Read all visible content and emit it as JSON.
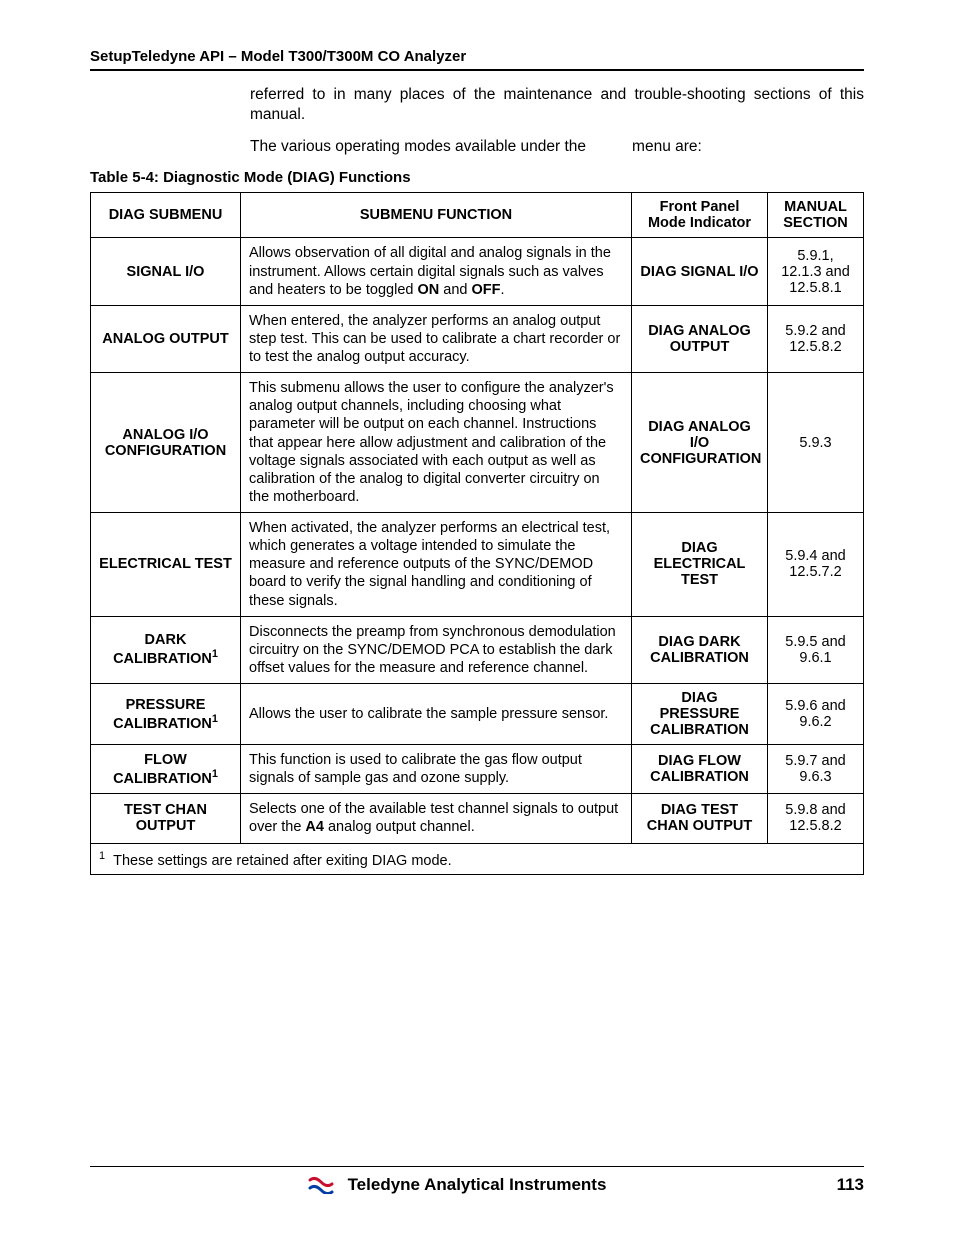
{
  "header": {
    "title": "SetupTeledyne API – Model T300/T300M CO Analyzer"
  },
  "intro": {
    "p1": "referred to in many places of the maintenance and trouble-shooting sections of this manual.",
    "p2_a": "The various operating modes available under the",
    "p2_b": "menu are:"
  },
  "table": {
    "caption": "Table 5-4:   Diagnostic Mode (DIAG) Functions",
    "headers": {
      "c1": "DIAG SUBMENU",
      "c2": "SUBMENU FUNCTION",
      "c3": "Front Panel Mode Indicator",
      "c4": "MANUAL SECTION"
    },
    "rows": [
      {
        "submenu": "SIGNAL I/O",
        "sup": "",
        "func_parts": [
          "Allows observation of all digital and analog signals in the instrument.  Allows certain digital signals such as valves and heaters to be toggled ",
          {
            "b": "ON"
          },
          " and ",
          {
            "b": "OFF"
          },
          "."
        ],
        "indicator": "DIAG SIGNAL I/O",
        "section": "5.9.1, 12.1.3 and 12.5.8.1"
      },
      {
        "submenu": "ANALOG OUTPUT",
        "sup": "",
        "func_parts": [
          "When entered, the analyzer performs an analog output step test.  This can be used to calibrate a chart recorder or to test the analog output accuracy."
        ],
        "indicator": "DIAG ANALOG OUTPUT",
        "section": "5.9.2 and 12.5.8.2"
      },
      {
        "submenu": "ANALOG I/O CONFIGURATION",
        "sup": "",
        "func_parts": [
          "This submenu allows the user to configure the analyzer's analog output channels, including choosing what parameter will be output on each channel.  Instructions that appear here allow adjustment and calibration of the voltage signals associated with each output as well as calibration of the analog to digital converter circuitry on the motherboard."
        ],
        "indicator": "DIAG ANALOG I/O CONFIGURATION",
        "section": "5.9.3"
      },
      {
        "submenu": "ELECTRICAL TEST",
        "sup": "",
        "func_parts": [
          "When activated, the analyzer performs an electrical test, which generates a voltage intended to simulate the measure and reference outputs of the SYNC/DEMOD board to verify the signal handling and conditioning of these signals."
        ],
        "indicator": "DIAG ELECTRICAL TEST",
        "section": "5.9.4 and 12.5.7.2"
      },
      {
        "submenu": "DARK CALIBRATION",
        "sup": "1",
        "func_parts": [
          "Disconnects the preamp from synchronous demodulation circuitry on the SYNC/DEMOD PCA to establish the dark offset values for the measure and reference channel."
        ],
        "indicator": "DIAG DARK CALIBRATION",
        "section": "5.9.5 and 9.6.1"
      },
      {
        "submenu": "PRESSURE CALIBRATION",
        "sup": "1",
        "func_parts": [
          "Allows the user to calibrate the sample pressure sensor."
        ],
        "indicator": "DIAG PRESSURE CALIBRATION",
        "section": "5.9.6 and 9.6.2"
      },
      {
        "submenu": "FLOW CALIBRATION",
        "sup": "1",
        "func_parts": [
          "This function is used to calibrate the gas flow output signals of sample gas and ozone supply."
        ],
        "indicator": "DIAG FLOW CALIBRATION",
        "section": "5.9.7 and 9.6.3"
      },
      {
        "submenu": "TEST CHAN OUTPUT",
        "sup": "",
        "func_parts": [
          "Selects one of the available test channel signals to output over the ",
          {
            "b": "A4"
          },
          " analog output channel."
        ],
        "indicator": "DIAG TEST CHAN OUTPUT",
        "section": "5.9.8 and 12.5.8.2"
      }
    ],
    "footnote_sup": "1",
    "footnote": "These settings are retained after exiting DIAG mode."
  },
  "footer": {
    "company": "Teledyne Analytical Instruments",
    "page": "113"
  },
  "colors": {
    "text": "#000000",
    "border": "#000000",
    "logo_red": "#c8102e",
    "logo_blue": "#003da5",
    "background": "#ffffff"
  }
}
